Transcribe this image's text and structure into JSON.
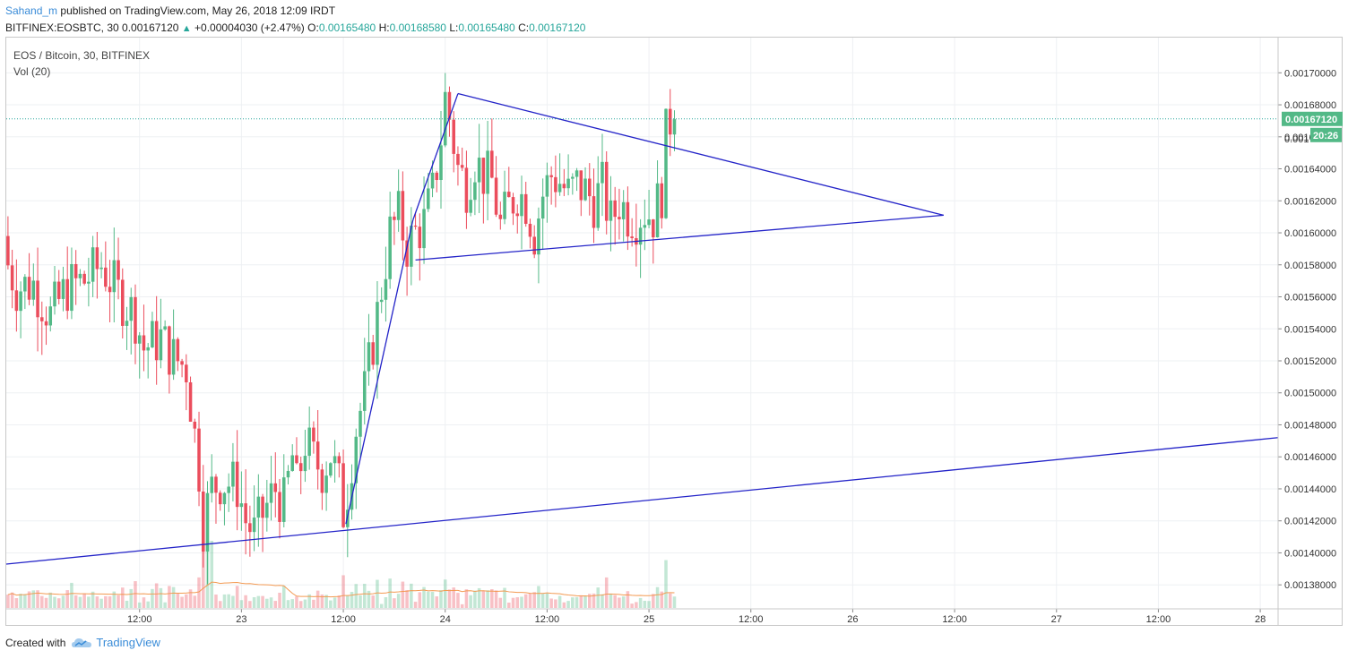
{
  "header": {
    "author": "Sahand_m",
    "published_text": "published on TradingView.com, May 26, 2018 12:09 IRDT",
    "symbol_text": "BITFINEX:EOSBTC, 30",
    "last_price": "0.00167120",
    "arrow": "▲",
    "change": "+0.00004030 (+2.47%)",
    "o_label": "O:",
    "o_value": "0.00165480",
    "h_label": "H:",
    "h_value": "0.00168580",
    "l_label": "L:",
    "l_value": "0.00165480",
    "c_label": "C:",
    "c_value": "0.00167120"
  },
  "legend": {
    "title": "EOS / Bitcoin, 30, BITFINEX",
    "volume": "Vol (20)"
  },
  "footer": {
    "created_with": "Created with",
    "brand": "TradingView"
  },
  "colors": {
    "up": "#53b987",
    "down": "#eb4d5c",
    "trendline": "#2424c8",
    "volume_ma": "#f39a52",
    "price_line": "#26a69a",
    "grid": "#eef0f3"
  },
  "chart_data": {
    "type": "candlestick",
    "ylim": [
      0.001365,
      0.001722
    ],
    "y_ticks": [
      "0.00138000",
      "0.00140000",
      "0.00142000",
      "0.00144000",
      "0.00146000",
      "0.00148000",
      "0.00150000",
      "0.00152000",
      "0.00154000",
      "0.00156000",
      "0.00158000",
      "0.00160000",
      "0.00162000",
      "0.00164000",
      "0.00166000",
      "0.00168000",
      "0.00170000"
    ],
    "x_ticks": [
      {
        "label": "12:00",
        "hour": 12
      },
      {
        "label": "23",
        "hour": 24
      },
      {
        "label": "12:00",
        "hour": 36
      },
      {
        "label": "24",
        "hour": 48
      },
      {
        "label": "12:00",
        "hour": 60
      },
      {
        "label": "25",
        "hour": 72
      },
      {
        "label": "12:00",
        "hour": 84
      },
      {
        "label": "26",
        "hour": 96
      },
      {
        "label": "12:00",
        "hour": 108
      },
      {
        "label": "27",
        "hour": 120
      },
      {
        "label": "12:00",
        "hour": 132
      },
      {
        "label": "28",
        "hour": 144
      }
    ],
    "x_range_hours": [
      -3.7,
      146.1
    ],
    "current_price_label": "0.00167120",
    "countdown_label": "20:26",
    "overlapped_tick_label": "0.001",
    "interval_minutes": 30,
    "anchors": [
      {
        "h": -3.5,
        "p": 0.001598
      },
      {
        "h": -3,
        "p": 0.00158
      },
      {
        "h": -2,
        "p": 0.001566
      },
      {
        "h": 0,
        "p": 0.001568
      },
      {
        "h": 2,
        "p": 0.001548
      },
      {
        "h": 4,
        "p": 0.001566
      },
      {
        "h": 6,
        "p": 0.00157
      },
      {
        "h": 8,
        "p": 0.00158
      },
      {
        "h": 10,
        "p": 0.001562
      },
      {
        "h": 12,
        "p": 0.001548
      },
      {
        "h": 13,
        "p": 0.001528
      },
      {
        "h": 15,
        "p": 0.001534
      },
      {
        "h": 16.5,
        "p": 0.001522
      },
      {
        "h": 18,
        "p": 0.001516
      },
      {
        "h": 19.5,
        "p": 0.001452
      },
      {
        "h": 20,
        "p": 0.001418
      },
      {
        "h": 21,
        "p": 0.00144
      },
      {
        "h": 22,
        "p": 0.001445
      },
      {
        "h": 24,
        "p": 0.001442
      },
      {
        "h": 25,
        "p": 0.00142
      },
      {
        "h": 26,
        "p": 0.001412
      },
      {
        "h": 27,
        "p": 0.001424
      },
      {
        "h": 28.5,
        "p": 0.00144
      },
      {
        "h": 29.5,
        "p": 0.00143
      },
      {
        "h": 30.5,
        "p": 0.00146
      },
      {
        "h": 31,
        "p": 0.00144
      },
      {
        "h": 32,
        "p": 0.00147
      },
      {
        "h": 33,
        "p": 0.001458
      },
      {
        "h": 34,
        "p": 0.001452
      },
      {
        "h": 35,
        "p": 0.001462
      },
      {
        "h": 36,
        "p": 0.001442
      },
      {
        "h": 36.3,
        "p": 0.00142
      },
      {
        "h": 37,
        "p": 0.00144
      },
      {
        "h": 37.5,
        "p": 0.00146
      },
      {
        "h": 38,
        "p": 0.001478
      },
      {
        "h": 39,
        "p": 0.0015
      },
      {
        "h": 40,
        "p": 0.001532
      },
      {
        "h": 41,
        "p": 0.001566
      },
      {
        "h": 42,
        "p": 0.0016
      },
      {
        "h": 43,
        "p": 0.00161
      },
      {
        "h": 44,
        "p": 0.001592
      },
      {
        "h": 45,
        "p": 0.0016
      },
      {
        "h": 46,
        "p": 0.001606
      },
      {
        "h": 47,
        "p": 0.001624
      },
      {
        "h": 48,
        "p": 0.00166
      },
      {
        "h": 48.5,
        "p": 0.001684
      },
      {
        "h": 49,
        "p": 0.001672
      },
      {
        "h": 50,
        "p": 0.00164
      },
      {
        "h": 51,
        "p": 0.00163
      },
      {
        "h": 52,
        "p": 0.001646
      },
      {
        "h": 53,
        "p": 0.001636
      },
      {
        "h": 54,
        "p": 0.001632
      },
      {
        "h": 55,
        "p": 0.001604
      },
      {
        "h": 56,
        "p": 0.001616
      },
      {
        "h": 57,
        "p": 0.001626
      },
      {
        "h": 58,
        "p": 0.00162
      },
      {
        "h": 59,
        "p": 0.0016
      },
      {
        "h": 60,
        "p": 0.001624
      },
      {
        "h": 61,
        "p": 0.001636
      },
      {
        "h": 62,
        "p": 0.001632
      },
      {
        "h": 63,
        "p": 0.001624
      },
      {
        "h": 64,
        "p": 0.00163
      },
      {
        "h": 65,
        "p": 0.001626
      },
      {
        "h": 66,
        "p": 0.00162
      },
      {
        "h": 67,
        "p": 0.001628
      },
      {
        "h": 68,
        "p": 0.001606
      },
      {
        "h": 69,
        "p": 0.00162
      },
      {
        "h": 70,
        "p": 0.001612
      },
      {
        "h": 71,
        "p": 0.00161
      },
      {
        "h": 72,
        "p": 0.001614
      },
      {
        "h": 73,
        "p": 0.00161
      },
      {
        "h": 74,
        "p": 0.001626
      },
      {
        "h": 74.5,
        "p": 0.00166
      },
      {
        "h": 75,
        "p": 0.001671
      }
    ],
    "trendlines": [
      {
        "name": "long-support",
        "from": {
          "h": -3.7,
          "p": 0.001393
        },
        "to": {
          "h": 146.1,
          "p": 0.001472
        }
      },
      {
        "name": "rally-left",
        "from": {
          "h": 36.3,
          "p": 0.001418
        },
        "to": {
          "h": 44.2,
          "p": 0.001608
        }
      },
      {
        "name": "rally-upper",
        "from": {
          "h": 44.2,
          "p": 0.001608
        },
        "to": {
          "h": 49.5,
          "p": 0.001687
        }
      },
      {
        "name": "triangle-top",
        "from": {
          "h": 49.5,
          "p": 0.001687
        },
        "to": {
          "h": 106.7,
          "p": 0.001611
        }
      },
      {
        "name": "triangle-bottom",
        "from": {
          "h": 44.5,
          "p": 0.001583
        },
        "to": {
          "h": 106.7,
          "p": 0.001611
        }
      }
    ]
  }
}
